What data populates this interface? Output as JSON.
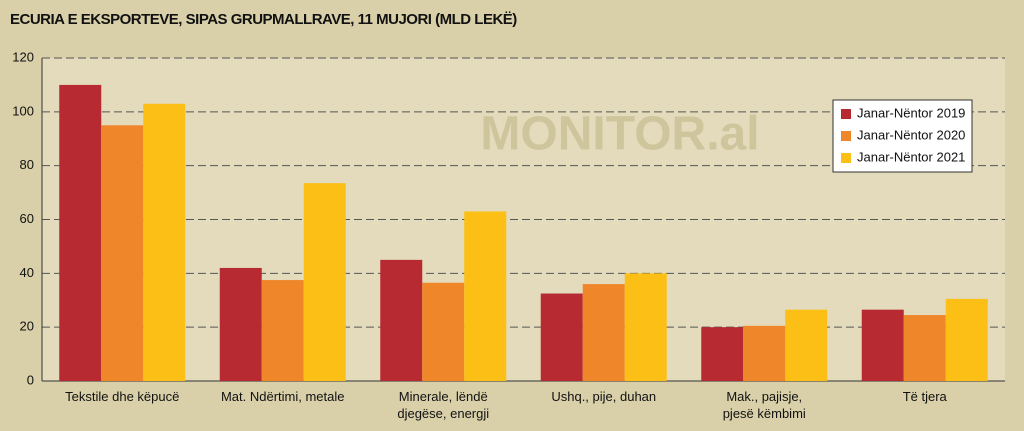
{
  "chart_data": {
    "type": "bar",
    "title": "ECURIA E EKSPORTEVE, SIPAS GRUPMALLRAVE, 11 MUJORI (MLD LEKË)",
    "watermark": "MONITOR.al",
    "categories": [
      "Tekstile dhe këpucë",
      "Mat. Ndërtimi, metale",
      "Minerale, lëndë\ndjegëse, energji",
      "Ushq., pije, duhan",
      "Mak., pajisje,\npjesë këmbimi",
      "Të tjera"
    ],
    "series": [
      {
        "name": "Janar-Nëntor 2019",
        "color": "#b82a32",
        "values": [
          110,
          42,
          45,
          32.5,
          20,
          26.5
        ]
      },
      {
        "name": "Janar-Nëntor 2020",
        "color": "#f0862a",
        "values": [
          95,
          37.5,
          36.5,
          36,
          20.5,
          24.5
        ]
      },
      {
        "name": "Janar-Nëntor 2021",
        "color": "#fbbf15",
        "values": [
          103,
          73.5,
          63,
          40,
          26.5,
          30.5
        ]
      }
    ],
    "ylim": [
      0,
      120
    ],
    "yticks": [
      0,
      20,
      40,
      60,
      80,
      100,
      120
    ],
    "grid": true,
    "legend": "top-right"
  }
}
